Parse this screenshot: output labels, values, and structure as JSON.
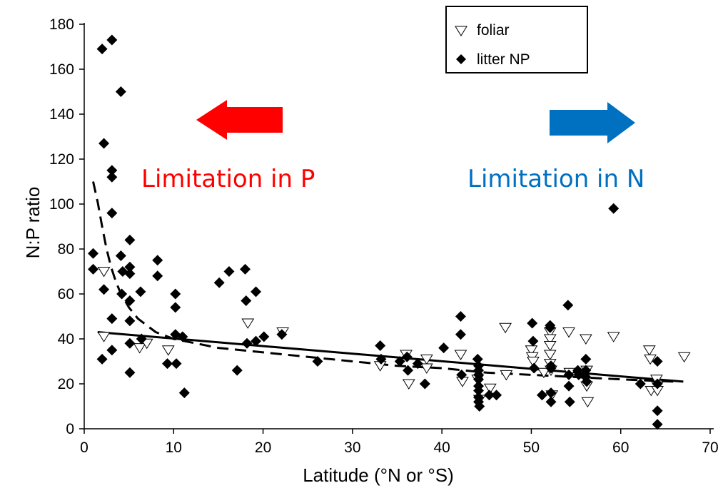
{
  "chart_data": {
    "type": "scatter",
    "xlabel": "Latitude (°N or °S)",
    "ylabel": "N:P ratio",
    "xlim": [
      0,
      70
    ],
    "ylim": [
      0,
      180
    ],
    "xticks": [
      0,
      10,
      20,
      30,
      40,
      50,
      60,
      70
    ],
    "yticks": [
      0,
      20,
      40,
      60,
      80,
      100,
      120,
      140,
      160,
      180
    ],
    "grid": false,
    "legend": {
      "position": "top-right"
    },
    "series": [
      {
        "name": "foliar",
        "marker": "open-triangle-down",
        "points": [
          [
            2.2,
            70
          ],
          [
            2.2,
            41
          ],
          [
            6.2,
            36
          ],
          [
            7.0,
            38
          ],
          [
            9.4,
            35
          ],
          [
            18.3,
            47
          ],
          [
            22.2,
            43
          ],
          [
            33.1,
            28
          ],
          [
            36.0,
            33
          ],
          [
            36.3,
            20
          ],
          [
            38.3,
            31
          ],
          [
            38.3,
            27
          ],
          [
            42.1,
            33
          ],
          [
            42.3,
            21
          ],
          [
            44.0,
            22
          ],
          [
            44.2,
            13
          ],
          [
            45.4,
            18
          ],
          [
            47.1,
            45
          ],
          [
            47.2,
            24
          ],
          [
            50.0,
            35
          ],
          [
            50.1,
            32
          ],
          [
            50.2,
            30
          ],
          [
            51.4,
            25
          ],
          [
            52.1,
            43
          ],
          [
            52.1,
            40
          ],
          [
            52.1,
            37
          ],
          [
            52.1,
            33
          ],
          [
            52.1,
            29
          ],
          [
            52.2,
            26
          ],
          [
            52.3,
            15
          ],
          [
            54.2,
            43
          ],
          [
            54.3,
            25
          ],
          [
            56.1,
            40
          ],
          [
            56.2,
            26
          ],
          [
            56.2,
            19
          ],
          [
            56.3,
            12
          ],
          [
            59.2,
            41
          ],
          [
            63.2,
            35
          ],
          [
            63.3,
            31
          ],
          [
            63.4,
            17
          ],
          [
            64.0,
            22
          ],
          [
            64.1,
            19
          ],
          [
            64.1,
            17
          ],
          [
            67.1,
            32
          ]
        ]
      },
      {
        "name": "litter NP",
        "marker": "filled-diamond",
        "points": [
          [
            1.0,
            78
          ],
          [
            1.0,
            71
          ],
          [
            2.0,
            169
          ],
          [
            2.0,
            31
          ],
          [
            2.2,
            127
          ],
          [
            2.2,
            62
          ],
          [
            3.1,
            173
          ],
          [
            3.1,
            115
          ],
          [
            3.1,
            112
          ],
          [
            3.1,
            96
          ],
          [
            3.1,
            49
          ],
          [
            3.1,
            35
          ],
          [
            4.1,
            150
          ],
          [
            4.1,
            77
          ],
          [
            4.2,
            60
          ],
          [
            4.3,
            70
          ],
          [
            5.1,
            84
          ],
          [
            5.1,
            72
          ],
          [
            5.1,
            69
          ],
          [
            5.1,
            57
          ],
          [
            5.1,
            48
          ],
          [
            5.1,
            38
          ],
          [
            5.1,
            25
          ],
          [
            6.3,
            61
          ],
          [
            6.4,
            40
          ],
          [
            8.2,
            75
          ],
          [
            8.2,
            68
          ],
          [
            9.3,
            29
          ],
          [
            10.2,
            60
          ],
          [
            10.2,
            54
          ],
          [
            10.2,
            42
          ],
          [
            10.3,
            29
          ],
          [
            11.0,
            41
          ],
          [
            11.2,
            16
          ],
          [
            15.1,
            65
          ],
          [
            16.2,
            70
          ],
          [
            17.1,
            26
          ],
          [
            18.0,
            71
          ],
          [
            18.1,
            57
          ],
          [
            18.2,
            38
          ],
          [
            19.2,
            61
          ],
          [
            19.2,
            39
          ],
          [
            20.1,
            41
          ],
          [
            22.1,
            42
          ],
          [
            26.1,
            30
          ],
          [
            33.1,
            37
          ],
          [
            33.2,
            31
          ],
          [
            35.3,
            30
          ],
          [
            36.1,
            32
          ],
          [
            36.2,
            26
          ],
          [
            37.3,
            29
          ],
          [
            38.1,
            20
          ],
          [
            40.2,
            36
          ],
          [
            42.1,
            50
          ],
          [
            42.1,
            42
          ],
          [
            42.2,
            24
          ],
          [
            44.0,
            31
          ],
          [
            44.1,
            28
          ],
          [
            44.1,
            26
          ],
          [
            44.1,
            24
          ],
          [
            44.1,
            22
          ],
          [
            44.1,
            19
          ],
          [
            44.1,
            17
          ],
          [
            44.1,
            14
          ],
          [
            44.1,
            12
          ],
          [
            44.2,
            10
          ],
          [
            45.3,
            15
          ],
          [
            46.1,
            15
          ],
          [
            50.1,
            47
          ],
          [
            50.2,
            39
          ],
          [
            50.3,
            27
          ],
          [
            51.2,
            15
          ],
          [
            52.1,
            46
          ],
          [
            52.1,
            45
          ],
          [
            52.2,
            28
          ],
          [
            52.2,
            27
          ],
          [
            52.2,
            16
          ],
          [
            52.2,
            12
          ],
          [
            54.1,
            55
          ],
          [
            54.2,
            24
          ],
          [
            54.2,
            19
          ],
          [
            54.3,
            12
          ],
          [
            55.2,
            26
          ],
          [
            55.3,
            24
          ],
          [
            56.1,
            31
          ],
          [
            56.1,
            26
          ],
          [
            56.1,
            23
          ],
          [
            56.2,
            21
          ],
          [
            59.2,
            98
          ],
          [
            62.2,
            20
          ],
          [
            64.1,
            30
          ],
          [
            64.1,
            20
          ],
          [
            64.1,
            8
          ],
          [
            64.1,
            2
          ]
        ]
      }
    ],
    "fits": [
      {
        "style": "solid",
        "points": [
          [
            1.5,
            43
          ],
          [
            67,
            21
          ]
        ]
      },
      {
        "style": "dashed",
        "points": [
          [
            1,
            110
          ],
          [
            1.5,
            101
          ],
          [
            2,
            90
          ],
          [
            2.5,
            80
          ],
          [
            3,
            72
          ],
          [
            3.5,
            66
          ],
          [
            4,
            61
          ],
          [
            5,
            54
          ],
          [
            6,
            49
          ],
          [
            7,
            46
          ],
          [
            8,
            43
          ],
          [
            10,
            40
          ],
          [
            15,
            36
          ],
          [
            20,
            34
          ],
          [
            25,
            32
          ],
          [
            30,
            30
          ],
          [
            35,
            28
          ],
          [
            40,
            27
          ],
          [
            45,
            25
          ],
          [
            50,
            24
          ],
          [
            55,
            23
          ],
          [
            60,
            22
          ],
          [
            66,
            21
          ]
        ]
      }
    ],
    "annotations": [
      {
        "text": "Limitation in P",
        "color": "#ff0000",
        "arrow_direction": "left"
      },
      {
        "text": "Limitation in N",
        "color": "#0070c0",
        "arrow_direction": "right"
      }
    ]
  }
}
